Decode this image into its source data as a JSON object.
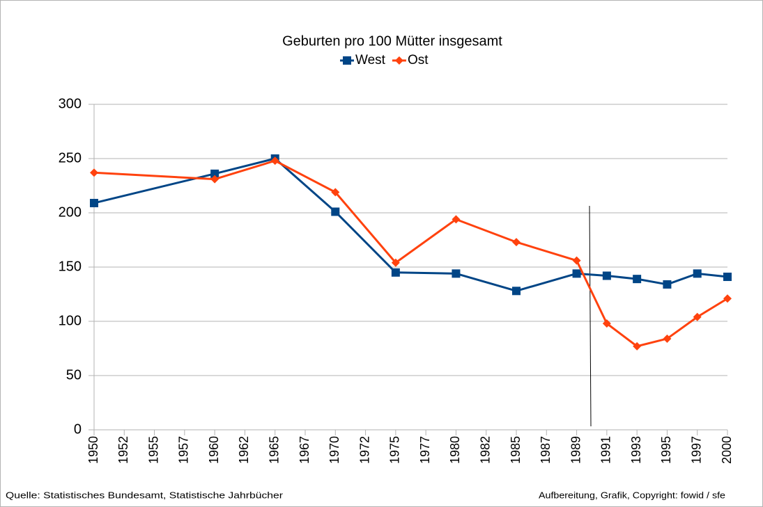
{
  "chart_data": {
    "type": "line",
    "title": "Geburten  pro 100 Mütter  insgesamt",
    "categories": [
      "1950",
      "1952",
      "1955",
      "1957",
      "1960",
      "1962",
      "1965",
      "1967",
      "1970",
      "1972",
      "1975",
      "1977",
      "1980",
      "1982",
      "1985",
      "1987",
      "1989",
      "1991",
      "1993",
      "1995",
      "1997",
      "2000"
    ],
    "x": [
      "1950",
      "1960",
      "1965",
      "1970",
      "1975",
      "1980",
      "1985",
      "1989",
      "1991",
      "1993",
      "1995",
      "1997",
      "2000"
    ],
    "series": [
      {
        "name": "West",
        "color": "#004586",
        "marker": "square",
        "values": [
          209,
          236,
          250,
          201,
          145,
          144,
          128,
          144,
          142,
          139,
          134,
          144,
          141
        ]
      },
      {
        "name": "Ost",
        "color": "#ff420e",
        "marker": "diamond",
        "values": [
          237,
          231,
          248,
          219,
          154,
          194,
          173,
          156,
          98,
          77,
          84,
          104,
          121
        ]
      }
    ],
    "ylim": [
      0,
      300
    ],
    "yticks": [
      0,
      50,
      100,
      150,
      200,
      250,
      300
    ],
    "grid": true,
    "legend": "top",
    "source": "Quelle: Statistisches Bundesamt, Statistische Jahrbücher",
    "credit": "Aufbereitung, Grafik, Copyright: fowid / sfe"
  }
}
